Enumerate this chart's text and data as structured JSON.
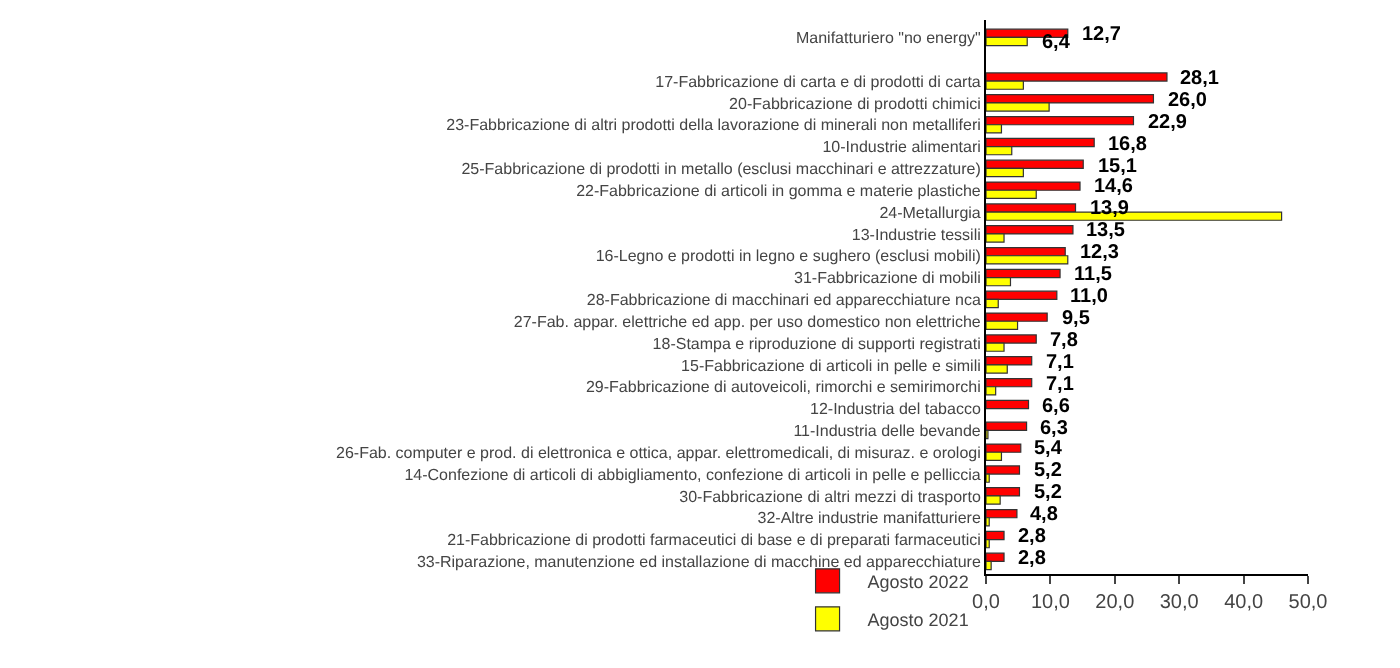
{
  "chart_data": {
    "type": "bar",
    "orientation": "horizontal",
    "categories": [
      "Manifatturiero \"no energy\"",
      null,
      "17-Fabbricazione di carta e di prodotti di carta",
      "20-Fabbricazione di prodotti chimici",
      "23-Fabbricazione di altri prodotti della lavorazione di minerali non metalliferi",
      "10-Industrie alimentari",
      "25-Fabbricazione di prodotti in metallo (esclusi macchinari e attrezzature)",
      "22-Fabbricazione di articoli in gomma e materie plastiche",
      "24-Metallurgia",
      "13-Industrie tessili",
      "16-Legno e prodotti in legno e sughero (esclusi mobili)",
      "31-Fabbricazione di mobili",
      "28-Fabbricazione di macchinari ed apparecchiature nca",
      "27-Fab. appar. elettriche ed app. per uso domestico non elettriche",
      "18-Stampa e riproduzione di supporti registrati",
      "15-Fabbricazione di articoli in pelle e simili",
      "29-Fabbricazione di autoveicoli, rimorchi e semirimorchi",
      "12-Industria del tabacco",
      "11-Industria delle bevande",
      "26-Fab. computer e prod. di elettronica e ottica, appar. elettromedicali, di misuraz. e orologi",
      "14-Confezione di articoli di abbigliamento, confezione di articoli in pelle e pelliccia",
      "30-Fabbricazione di altri mezzi di trasporto",
      "32-Altre industrie manifatturiere",
      "21-Fabbricazione di prodotti farmaceutici di base e di preparati farmaceutici",
      "33-Riparazione, manutenzione ed installazione di macchine ed apparecchiature"
    ],
    "series": [
      {
        "name": "Agosto 2022",
        "color": "#ff0000",
        "values": [
          12.7,
          null,
          28.1,
          26.0,
          22.9,
          16.8,
          15.1,
          14.6,
          13.9,
          13.5,
          12.3,
          11.5,
          11.0,
          9.5,
          7.8,
          7.1,
          7.1,
          6.6,
          6.3,
          5.4,
          5.2,
          5.2,
          4.8,
          2.8,
          2.8
        ],
        "value_labels": [
          "12,7",
          null,
          "28,1",
          "26,0",
          "22,9",
          "16,8",
          "15,1",
          "14,6",
          "13,9",
          "13,5",
          "12,3",
          "11,5",
          "11,0",
          "9,5",
          "7,8",
          "7,1",
          "7,1",
          "6,6",
          "6,3",
          "5,4",
          "5,2",
          "5,2",
          "4,8",
          "2,8",
          "2,8"
        ]
      },
      {
        "name": "Agosto 2021",
        "color": "#ffff00",
        "values": [
          6.4,
          null,
          5.8,
          9.8,
          2.4,
          4.0,
          5.8,
          7.8,
          45.9,
          2.8,
          12.7,
          3.8,
          1.9,
          4.9,
          2.8,
          3.3,
          1.5,
          null,
          0.3,
          2.4,
          0.5,
          2.2,
          0.5,
          0.5,
          0.8
        ],
        "value_labels": [
          "6,4",
          null,
          null,
          null,
          null,
          null,
          null,
          null,
          null,
          null,
          null,
          null,
          null,
          null,
          null,
          null,
          null,
          null,
          null,
          null,
          null,
          null,
          null,
          null,
          null
        ]
      }
    ],
    "xlim": [
      0,
      50
    ],
    "xticks": [
      {
        "value": 0,
        "label": "0,0"
      },
      {
        "value": 10,
        "label": "10,0"
      },
      {
        "value": 20,
        "label": "20,0"
      },
      {
        "value": 30,
        "label": "30,0"
      },
      {
        "value": 40,
        "label": "40,0"
      },
      {
        "value": 50,
        "label": "50,0"
      }
    ],
    "grid": false,
    "legend": "bottom left"
  }
}
